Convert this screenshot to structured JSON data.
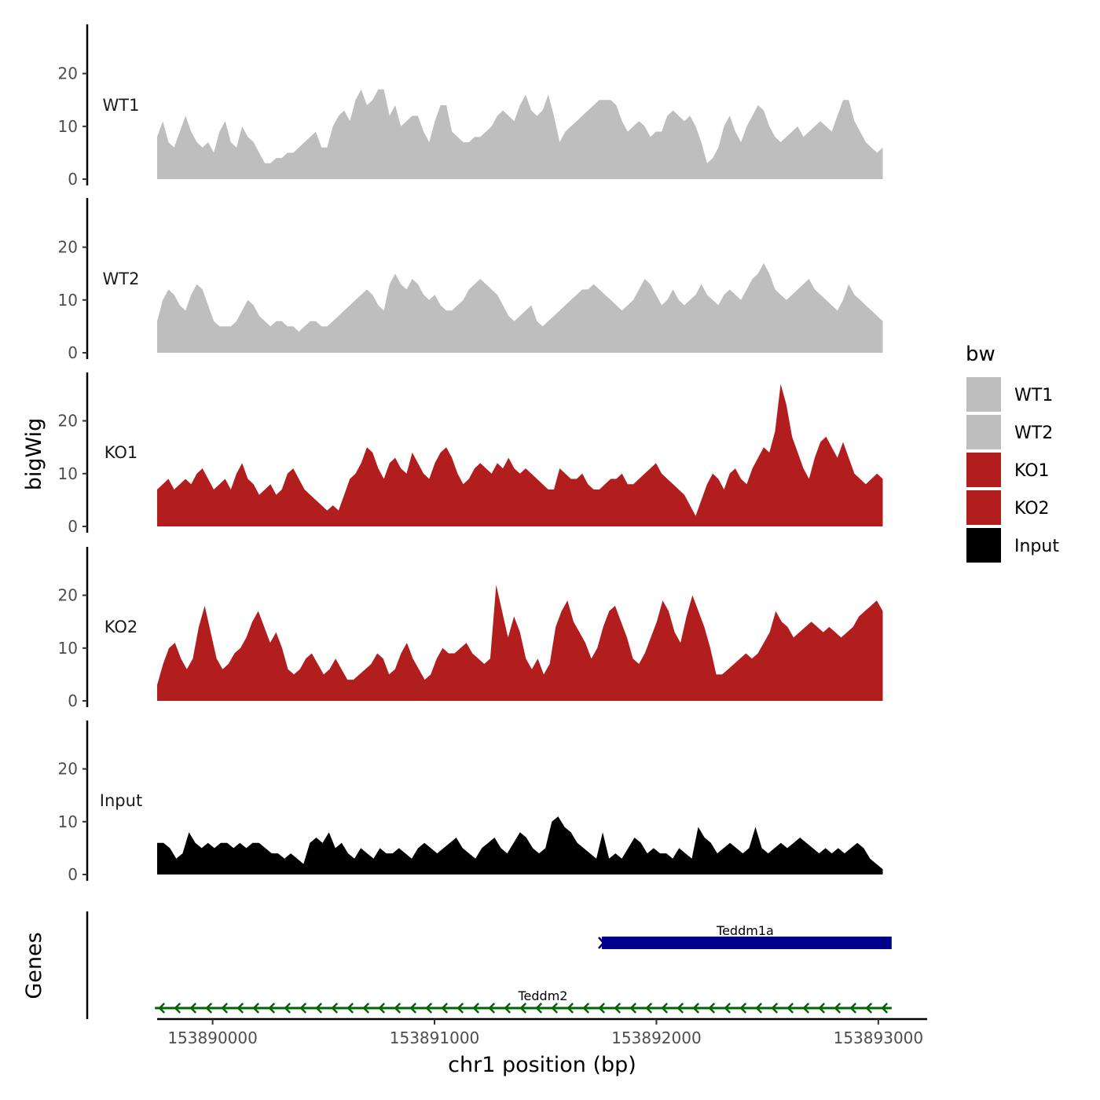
{
  "chart_data": {
    "type": "area",
    "ylabel": "bigWig",
    "xlabel": "chr1 position (bp)",
    "ylim": [
      0,
      28
    ],
    "y_ticks": [
      0,
      10,
      20
    ],
    "y_tick_labels": [
      "0",
      "10",
      "20"
    ],
    "xlim": [
      153889750,
      153893220
    ],
    "x_ticks": [
      153890000,
      153891000,
      153892000,
      153893000
    ],
    "x_tick_labels": [
      "153890000",
      "153891000",
      "153892000",
      "153893000"
    ],
    "x_start": 153889750,
    "x_end": 153893020,
    "tracks": [
      {
        "name": "WT1",
        "label": "WT1",
        "color": "#bebebe",
        "values": [
          8,
          11,
          7,
          6,
          9,
          12,
          9,
          7,
          6,
          7,
          5,
          9,
          11,
          7,
          6,
          10,
          8,
          7,
          5,
          3,
          3,
          4,
          4,
          5,
          5,
          6,
          7,
          8,
          9,
          6,
          6,
          10,
          12,
          13,
          11,
          15,
          17,
          14,
          15,
          17,
          17,
          12,
          14,
          10,
          11,
          12,
          12,
          9,
          7,
          11,
          14,
          14,
          9,
          8,
          7,
          7,
          8,
          8,
          9,
          10,
          12,
          13,
          12,
          11,
          14,
          16,
          13,
          12,
          13,
          16,
          12,
          7,
          9,
          10,
          11,
          12,
          13,
          14,
          15,
          15,
          15,
          14,
          11,
          9,
          10,
          11,
          10,
          8,
          9,
          9,
          12,
          13,
          12,
          11,
          12,
          10,
          7,
          3,
          4,
          6,
          10,
          12,
          9,
          7,
          10,
          12,
          14,
          13,
          10,
          8,
          7,
          8,
          9,
          10,
          8,
          9,
          10,
          11,
          10,
          9,
          12,
          15,
          15,
          11,
          9,
          7,
          6,
          5,
          6
        ],
        "legend_label": "WT1"
      },
      {
        "name": "WT2",
        "label": "WT2",
        "color": "#bebebe",
        "values": [
          6,
          10,
          12,
          11,
          9,
          8,
          11,
          13,
          12,
          9,
          6,
          5,
          5,
          5,
          6,
          8,
          10,
          9,
          7,
          6,
          5,
          6,
          6,
          5,
          5,
          4,
          5,
          6,
          6,
          5,
          5,
          6,
          7,
          8,
          9,
          10,
          11,
          12,
          11,
          9,
          8,
          13,
          15,
          13,
          12,
          14,
          13,
          11,
          10,
          11,
          9,
          8,
          8,
          9,
          10,
          12,
          13,
          14,
          13,
          12,
          11,
          9,
          7,
          6,
          7,
          8,
          9,
          6,
          5,
          6,
          7,
          8,
          9,
          10,
          11,
          12,
          12,
          13,
          12,
          11,
          10,
          9,
          8,
          9,
          10,
          12,
          14,
          13,
          11,
          9,
          10,
          12,
          10,
          9,
          10,
          11,
          13,
          11,
          10,
          9,
          11,
          12,
          11,
          10,
          12,
          14,
          15,
          17,
          15,
          12,
          11,
          10,
          11,
          12,
          13,
          14,
          12,
          11,
          10,
          9,
          8,
          10,
          13,
          11,
          10,
          9,
          8,
          7,
          6
        ],
        "legend_label": "WT2"
      },
      {
        "name": "KO1",
        "label": "KO1",
        "color": "#b21e1e",
        "values": [
          7,
          8,
          9,
          7,
          8,
          9,
          8,
          10,
          11,
          9,
          7,
          8,
          9,
          7,
          10,
          12,
          9,
          8,
          6,
          7,
          8,
          6,
          7,
          10,
          11,
          9,
          7,
          6,
          5,
          4,
          3,
          4,
          3,
          6,
          9,
          10,
          12,
          15,
          14,
          11,
          9,
          12,
          13,
          11,
          10,
          14,
          12,
          10,
          9,
          12,
          14,
          15,
          13,
          10,
          8,
          9,
          11,
          12,
          11,
          10,
          12,
          11,
          13,
          11,
          10,
          11,
          10,
          9,
          8,
          7,
          7,
          11,
          10,
          9,
          9,
          10,
          8,
          7,
          7,
          8,
          9,
          9,
          10,
          8,
          8,
          9,
          10,
          11,
          12,
          10,
          9,
          8,
          7,
          6,
          4,
          2,
          5,
          8,
          10,
          9,
          7,
          10,
          11,
          9,
          8,
          11,
          13,
          15,
          14,
          18,
          27,
          23,
          17,
          14,
          11,
          9,
          13,
          16,
          17,
          15,
          13,
          16,
          13,
          10,
          9,
          8,
          9,
          10,
          9
        ],
        "legend_label": "KO1"
      },
      {
        "name": "KO2",
        "label": "KO2",
        "color": "#b21e1e",
        "values": [
          3,
          7,
          10,
          11,
          8,
          6,
          8,
          14,
          18,
          13,
          8,
          6,
          7,
          9,
          10,
          12,
          15,
          17,
          14,
          11,
          13,
          10,
          6,
          5,
          6,
          8,
          9,
          7,
          5,
          6,
          8,
          6,
          4,
          4,
          5,
          6,
          7,
          9,
          8,
          5,
          6,
          9,
          11,
          8,
          6,
          4,
          5,
          8,
          10,
          9,
          9,
          10,
          11,
          9,
          8,
          7,
          8,
          22,
          17,
          12,
          16,
          13,
          8,
          6,
          8,
          5,
          7,
          14,
          17,
          19,
          15,
          13,
          11,
          8,
          10,
          14,
          17,
          18,
          15,
          12,
          8,
          7,
          9,
          12,
          15,
          19,
          17,
          13,
          11,
          16,
          20,
          17,
          14,
          10,
          5,
          5,
          6,
          7,
          8,
          9,
          8,
          9,
          11,
          13,
          17,
          15,
          14,
          12,
          13,
          14,
          15,
          14,
          13,
          14,
          13,
          12,
          13,
          14,
          16,
          17,
          18,
          19,
          17
        ],
        "legend_label": "KO2"
      },
      {
        "name": "Input",
        "label": "Input",
        "color": "#000000",
        "values": [
          6,
          6,
          5,
          3,
          4,
          8,
          6,
          5,
          6,
          5,
          6,
          6,
          5,
          6,
          5,
          6,
          6,
          5,
          4,
          4,
          3,
          4,
          3,
          2,
          6,
          7,
          6,
          8,
          5,
          6,
          4,
          3,
          5,
          4,
          3,
          5,
          4,
          4,
          5,
          4,
          3,
          5,
          6,
          5,
          4,
          5,
          6,
          7,
          5,
          4,
          3,
          5,
          6,
          7,
          5,
          4,
          6,
          8,
          7,
          5,
          4,
          5,
          10,
          11,
          9,
          8,
          6,
          5,
          4,
          3,
          8,
          3,
          4,
          3,
          5,
          7,
          6,
          4,
          5,
          4,
          4,
          3,
          5,
          4,
          3,
          9,
          7,
          6,
          4,
          5,
          6,
          5,
          4,
          5,
          9,
          5,
          4,
          5,
          6,
          5,
          6,
          7,
          6,
          5,
          4,
          5,
          4,
          5,
          4,
          5,
          6,
          5,
          3,
          2,
          1
        ],
        "legend_label": "Input"
      }
    ],
    "genes_track_label": "Genes",
    "genes": [
      {
        "name": "Teddm1a",
        "start": 153891740,
        "end": 153893060,
        "strand": "+",
        "color": "#00008b",
        "style": "block"
      },
      {
        "name": "Teddm2",
        "start": 153889740,
        "end": 153893060,
        "strand": "-",
        "color": "#006400",
        "style": "line"
      }
    ],
    "legend": {
      "title": "bw",
      "position": "right",
      "entries": [
        {
          "label": "WT1",
          "color": "#bebebe"
        },
        {
          "label": "WT2",
          "color": "#bebebe"
        },
        {
          "label": "KO1",
          "color": "#b21e1e"
        },
        {
          "label": "KO2",
          "color": "#b21e1e"
        },
        {
          "label": "Input",
          "color": "#000000"
        }
      ]
    }
  }
}
